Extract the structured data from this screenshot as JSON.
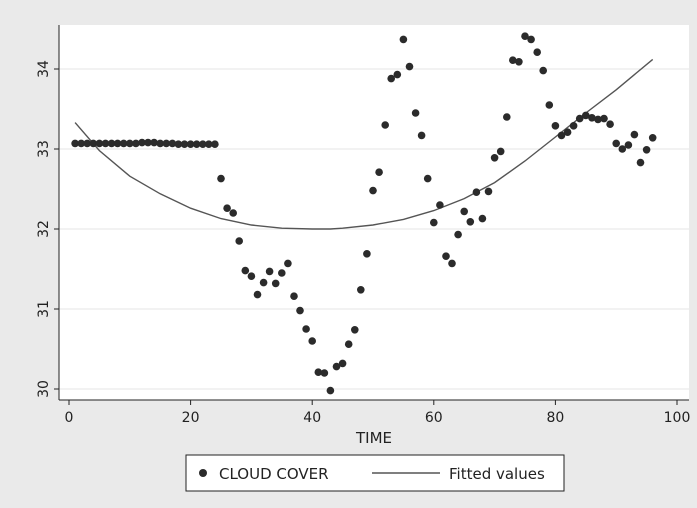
{
  "chart_data": {
    "type": "scatter",
    "title": "",
    "xlabel": "TIME",
    "ylabel": "",
    "xlim": [
      0,
      100
    ],
    "ylim": [
      29.95,
      34.55
    ],
    "xticks": [
      0,
      20,
      40,
      60,
      80,
      100
    ],
    "yticks": [
      30,
      31,
      32,
      33,
      34
    ],
    "grid": "horizontal",
    "legend_position": "bottom",
    "series": [
      {
        "name": "CLOUD COVER",
        "kind": "scatter",
        "color": "#2b2b2b",
        "x": [
          1,
          2,
          3,
          4,
          5,
          6,
          7,
          8,
          9,
          10,
          11,
          12,
          13,
          14,
          15,
          16,
          17,
          18,
          19,
          20,
          21,
          22,
          23,
          24,
          25,
          26,
          27,
          28,
          29,
          30,
          31,
          32,
          33,
          34,
          35,
          36,
          37,
          38,
          39,
          40,
          41,
          42,
          43,
          44,
          45,
          46,
          47,
          48,
          49,
          50,
          51,
          52,
          53,
          54,
          55,
          56,
          57,
          58,
          59,
          60,
          61,
          62,
          63,
          64,
          65,
          66,
          67,
          68,
          69,
          70,
          71,
          72,
          73,
          74,
          75,
          76,
          77,
          78,
          79,
          80,
          81,
          82,
          83,
          84,
          85,
          86,
          87,
          88,
          89,
          90,
          91,
          92,
          93,
          94,
          95,
          96
        ],
        "y": [
          33.07,
          33.07,
          33.07,
          33.07,
          33.07,
          33.07,
          33.07,
          33.07,
          33.07,
          33.07,
          33.07,
          33.08,
          33.08,
          33.08,
          33.07,
          33.07,
          33.07,
          33.06,
          33.06,
          33.06,
          33.06,
          33.06,
          33.06,
          33.06,
          32.63,
          32.26,
          32.2,
          31.85,
          31.48,
          31.41,
          31.18,
          31.33,
          31.47,
          31.32,
          31.45,
          31.57,
          31.16,
          30.98,
          30.75,
          30.6,
          30.21,
          30.2,
          29.98,
          30.28,
          30.32,
          30.56,
          30.74,
          31.24,
          31.69,
          32.48,
          32.71,
          33.3,
          33.88,
          33.93,
          34.37,
          34.03,
          33.45,
          33.17,
          32.63,
          32.08,
          32.3,
          31.66,
          31.57,
          31.93,
          32.22,
          32.09,
          32.46,
          32.13,
          32.47,
          32.89,
          32.97,
          33.4,
          34.11,
          34.09,
          34.41,
          34.37,
          34.21,
          33.98,
          33.55,
          33.29,
          33.17,
          33.21,
          33.29,
          33.38,
          33.42,
          33.39,
          33.37,
          33.38,
          33.31,
          33.07,
          33.0,
          33.05,
          33.18,
          32.83,
          32.99,
          33.14
        ]
      },
      {
        "name": "Fitted values",
        "kind": "line",
        "color": "#555555",
        "x": [
          1,
          5,
          10,
          15,
          20,
          25,
          30,
          35,
          40,
          43,
          45,
          50,
          55,
          60,
          65,
          70,
          75,
          80,
          85,
          90,
          96
        ],
        "y": [
          33.33,
          32.98,
          32.66,
          32.44,
          32.26,
          32.13,
          32.05,
          32.01,
          32.0,
          32.0,
          32.01,
          32.05,
          32.12,
          32.23,
          32.38,
          32.58,
          32.85,
          33.15,
          33.45,
          33.74,
          34.12
        ]
      }
    ]
  }
}
